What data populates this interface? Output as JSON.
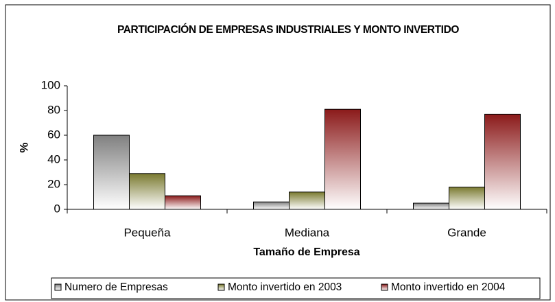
{
  "chart_data": {
    "type": "bar",
    "title": "PARTICIPACIÓN DE EMPRESAS INDUSTRIALES Y MONTO INVERTIDO",
    "x_label": "Tamaño de Empresa",
    "y_label": "%",
    "categories": [
      "Pequeña",
      "Mediana",
      "Grande"
    ],
    "series": [
      {
        "name": "Numero de Empresas",
        "color": "#808080",
        "values": [
          60,
          6,
          5
        ]
      },
      {
        "name": "Monto invertido en 2003",
        "color": "#7a7a30",
        "values": [
          29,
          14,
          18
        ]
      },
      {
        "name": "Monto invertido en 2004",
        "color": "#8b1a1a",
        "values": [
          11,
          81,
          77
        ]
      }
    ],
    "ylim": [
      0,
      100
    ],
    "yticks": [
      0,
      20,
      40,
      60,
      80,
      100
    ],
    "grid": false,
    "legend": "bottom"
  }
}
